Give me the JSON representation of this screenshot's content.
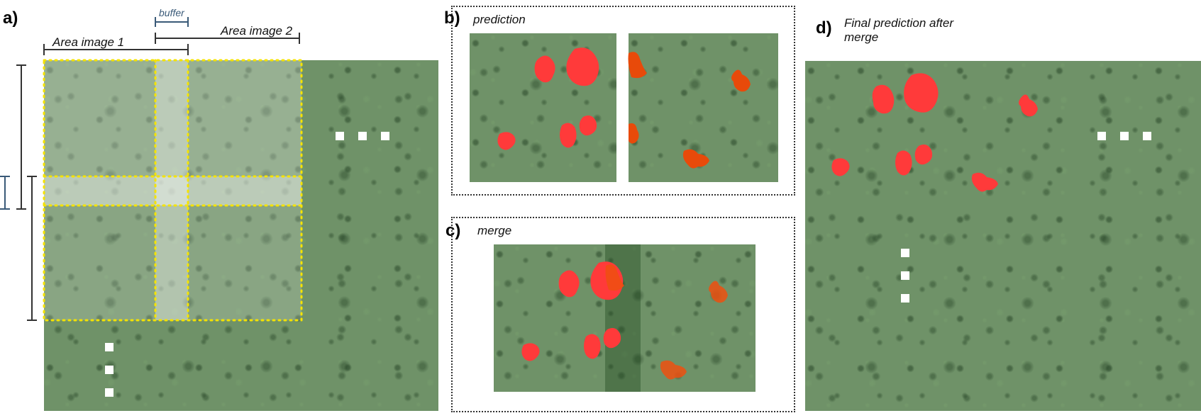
{
  "panels": {
    "a": {
      "letter": "a)",
      "area1_label": "Area image  1",
      "area2_label": "Area image  2",
      "buffer_label": "buffer"
    },
    "b": {
      "letter": "b)",
      "label": "prediction"
    },
    "c": {
      "letter": "c)",
      "label": "merge"
    },
    "d": {
      "letter": "d)",
      "label_line1": "Final prediction after",
      "label_line2": "merge"
    }
  },
  "colors": {
    "tile_border": "#f5e300",
    "crown_red": "#ff3333",
    "crown_orange": "#ee4400",
    "bracket": "#333333",
    "buffer_bracket": "#3a5a78"
  },
  "icons": {
    "ellipsis": "white-square-dots"
  }
}
